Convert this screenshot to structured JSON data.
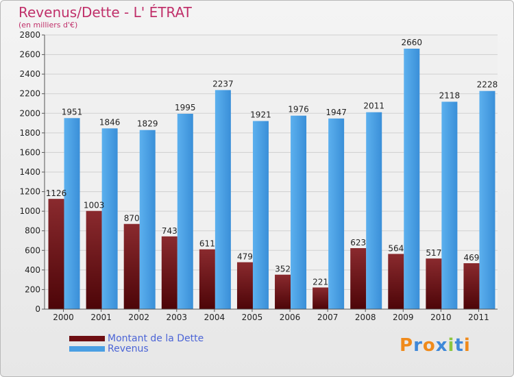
{
  "header": {
    "title": "Revenus/Dette - L' ÉTRAT",
    "subtitle": "(en milliers d'€)"
  },
  "legend": {
    "items": [
      {
        "label": "Montant de la Dette",
        "color": "#6e0e12"
      },
      {
        "label": "Revenus",
        "color": "#4a9fe3"
      }
    ]
  },
  "logo": {
    "letters": [
      "P",
      "r",
      "o",
      "x",
      "i",
      "t",
      "i"
    ]
  },
  "colors": {
    "dette_bar": "#7a1a1e",
    "revenus_bar": "#4aa0e6",
    "title": "#c0306a",
    "legend_text": "#4b64d6"
  },
  "chart_data": {
    "type": "bar",
    "categories": [
      "2000",
      "2001",
      "2002",
      "2003",
      "2004",
      "2005",
      "2006",
      "2007",
      "2008",
      "2009",
      "2010",
      "2011"
    ],
    "series": [
      {
        "name": "Montant de la Dette",
        "values": [
          1126,
          1003,
          870,
          743,
          611,
          479,
          352,
          221,
          623,
          564,
          517,
          469
        ]
      },
      {
        "name": "Revenus",
        "values": [
          1951,
          1846,
          1829,
          1995,
          2237,
          1921,
          1976,
          1947,
          2011,
          2660,
          2118,
          2228
        ]
      }
    ],
    "data_labels": {
      "Montant de la Dette": [
        "1126",
        "1003",
        "870",
        "743",
        "611",
        "479",
        "352",
        "221",
        "623",
        "564",
        "517",
        "469"
      ],
      "Revenus": [
        "1951",
        "1846",
        "1829",
        "1995",
        "2237",
        "1921",
        "1976",
        "1947",
        "2011",
        "2660",
        "2118",
        "2228"
      ]
    },
    "y_ticks": [
      "0",
      "200",
      "400",
      "600",
      "800",
      "1000",
      "1200",
      "1400",
      "1600",
      "1800",
      "2000",
      "2200",
      "2400",
      "2600",
      "2800"
    ],
    "ylim": [
      0,
      2800
    ],
    "grid": true,
    "legend_position": "bottom-left"
  }
}
